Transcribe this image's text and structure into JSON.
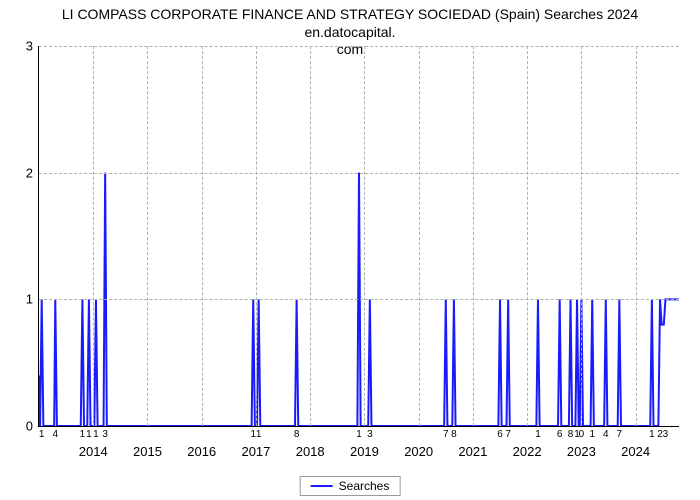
{
  "title_line1": "LI COMPASS CORPORATE FINANCE AND STRATEGY SOCIEDAD (Spain) Searches 2024 en.datocapital.",
  "title_line2": "com",
  "chart": {
    "type": "line",
    "line_color": "#1a1aff",
    "line_width": 2,
    "background_color": "#ffffff",
    "grid_color": "#b0b0b0",
    "axis_color": "#000000",
    "title_fontsize": 14,
    "tick_fontsize": 13,
    "sublabel_fontsize": 10,
    "legend_label": "Searches",
    "ylim": [
      0,
      3
    ],
    "yticks": [
      0,
      1,
      2,
      3
    ],
    "x_start": 2013.0,
    "x_end": 2024.8,
    "year_ticks": [
      2014,
      2015,
      2016,
      2017,
      2018,
      2019,
      2020,
      2021,
      2022,
      2023,
      2024
    ],
    "sub_labels": [
      {
        "x": 2013.05,
        "t": "1"
      },
      {
        "x": 2013.3,
        "t": "4"
      },
      {
        "x": 2013.8,
        "t": "1"
      },
      {
        "x": 2013.92,
        "t": "1"
      },
      {
        "x": 2014.05,
        "t": "1"
      },
      {
        "x": 2014.22,
        "t": "3"
      },
      {
        "x": 2016.95,
        "t": "1"
      },
      {
        "x": 2017.05,
        "t": "1"
      },
      {
        "x": 2017.75,
        "t": "8"
      },
      {
        "x": 2018.9,
        "t": "1"
      },
      {
        "x": 2019.1,
        "t": "3"
      },
      {
        "x": 2020.5,
        "t": "7"
      },
      {
        "x": 2020.65,
        "t": "8"
      },
      {
        "x": 2021.5,
        "t": "6"
      },
      {
        "x": 2021.65,
        "t": "7"
      },
      {
        "x": 2022.2,
        "t": "1"
      },
      {
        "x": 2022.6,
        "t": "6"
      },
      {
        "x": 2022.8,
        "t": "8"
      },
      {
        "x": 2022.92,
        "t": "1"
      },
      {
        "x": 2023.0,
        "t": "0"
      },
      {
        "x": 2023.2,
        "t": "1"
      },
      {
        "x": 2023.45,
        "t": "4"
      },
      {
        "x": 2023.7,
        "t": "7"
      },
      {
        "x": 2024.3,
        "t": "1"
      },
      {
        "x": 2024.45,
        "t": "2"
      },
      {
        "x": 2024.55,
        "t": "3"
      }
    ],
    "points": [
      [
        2013.0,
        0.4
      ],
      [
        2013.02,
        0
      ],
      [
        2013.05,
        1
      ],
      [
        2013.08,
        0
      ],
      [
        2013.28,
        0
      ],
      [
        2013.3,
        1
      ],
      [
        2013.33,
        0
      ],
      [
        2013.77,
        0
      ],
      [
        2013.8,
        1
      ],
      [
        2013.83,
        0
      ],
      [
        2013.89,
        0
      ],
      [
        2013.92,
        1
      ],
      [
        2013.95,
        0
      ],
      [
        2014.02,
        0
      ],
      [
        2014.05,
        1
      ],
      [
        2014.08,
        0
      ],
      [
        2014.19,
        0
      ],
      [
        2014.22,
        2
      ],
      [
        2014.25,
        0
      ],
      [
        2016.92,
        0
      ],
      [
        2016.95,
        1
      ],
      [
        2016.98,
        0
      ],
      [
        2017.02,
        0
      ],
      [
        2017.05,
        1
      ],
      [
        2017.08,
        0
      ],
      [
        2017.72,
        0
      ],
      [
        2017.75,
        1
      ],
      [
        2017.78,
        0
      ],
      [
        2018.87,
        0
      ],
      [
        2018.9,
        2
      ],
      [
        2018.93,
        0
      ],
      [
        2019.07,
        0
      ],
      [
        2019.1,
        1
      ],
      [
        2019.13,
        0
      ],
      [
        2020.47,
        0
      ],
      [
        2020.5,
        1
      ],
      [
        2020.53,
        0
      ],
      [
        2020.62,
        0
      ],
      [
        2020.65,
        1
      ],
      [
        2020.68,
        0
      ],
      [
        2021.47,
        0
      ],
      [
        2021.5,
        1
      ],
      [
        2021.53,
        0
      ],
      [
        2021.62,
        0
      ],
      [
        2021.65,
        1
      ],
      [
        2021.68,
        0
      ],
      [
        2022.17,
        0
      ],
      [
        2022.2,
        1
      ],
      [
        2022.23,
        0
      ],
      [
        2022.57,
        0
      ],
      [
        2022.6,
        1
      ],
      [
        2022.63,
        0
      ],
      [
        2022.77,
        0
      ],
      [
        2022.8,
        1
      ],
      [
        2022.83,
        0
      ],
      [
        2022.89,
        0
      ],
      [
        2022.92,
        1
      ],
      [
        2022.95,
        0
      ],
      [
        2022.97,
        0
      ],
      [
        2023.0,
        1
      ],
      [
        2023.03,
        0
      ],
      [
        2023.17,
        0
      ],
      [
        2023.2,
        1
      ],
      [
        2023.23,
        0
      ],
      [
        2023.42,
        0
      ],
      [
        2023.45,
        1
      ],
      [
        2023.48,
        0
      ],
      [
        2023.67,
        0
      ],
      [
        2023.7,
        1
      ],
      [
        2023.73,
        0
      ],
      [
        2024.27,
        0
      ],
      [
        2024.3,
        1
      ],
      [
        2024.33,
        0
      ],
      [
        2024.42,
        0
      ],
      [
        2024.45,
        1
      ],
      [
        2024.48,
        0.8
      ],
      [
        2024.52,
        0.8
      ],
      [
        2024.55,
        1
      ],
      [
        2024.8,
        1
      ]
    ]
  }
}
